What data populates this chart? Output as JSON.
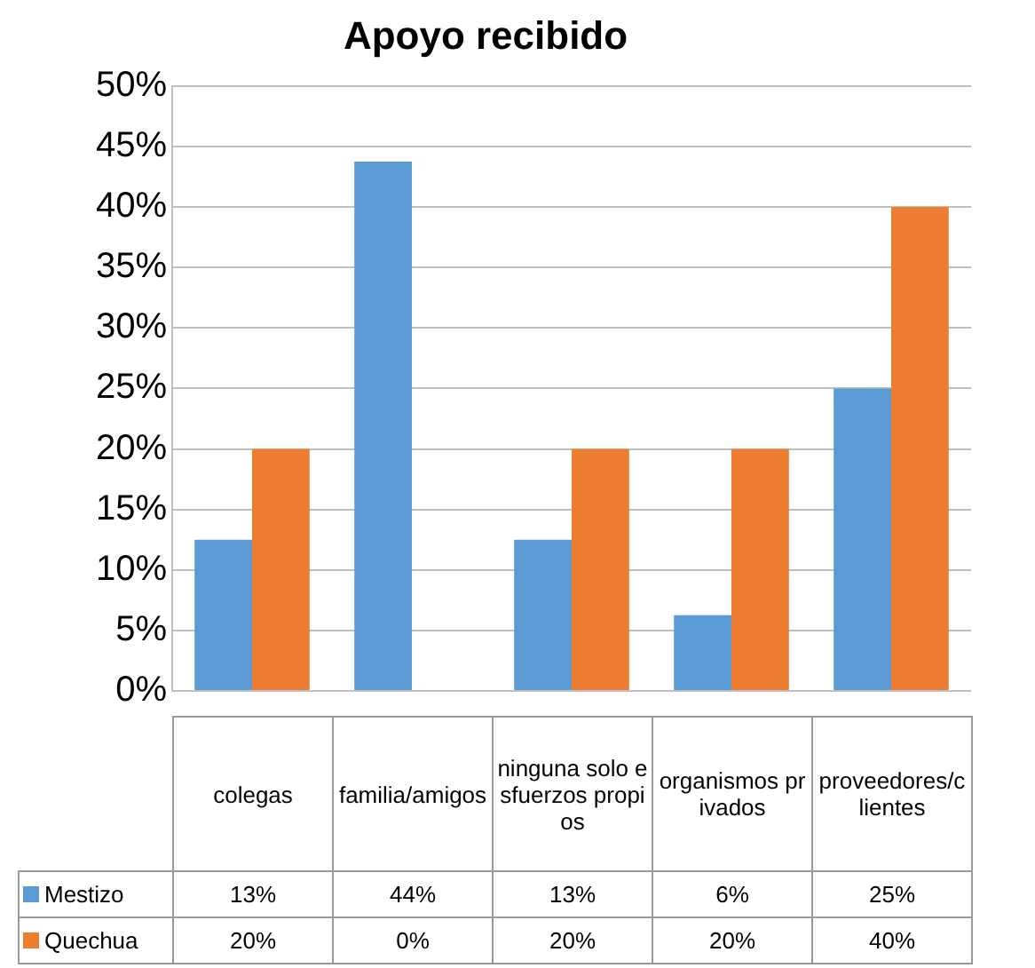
{
  "chart_data": {
    "type": "bar",
    "title": "Apoyo recibido",
    "categories": [
      "colegas",
      "familia/amigos",
      "ninguna solo esfuerzos propios",
      "organismos privados",
      "proveedores/clientes"
    ],
    "series": [
      {
        "name": "Mestizo",
        "color": "#5b9bd5",
        "values": [
          12.5,
          43.75,
          12.5,
          6.25,
          25
        ],
        "value_labels": [
          "13%",
          "44%",
          "13%",
          "6%",
          "25%"
        ]
      },
      {
        "name": "Quechua",
        "color": "#ed7d31",
        "values": [
          20,
          0,
          20,
          20,
          40
        ],
        "value_labels": [
          "20%",
          "0%",
          "20%",
          "20%",
          "40%"
        ]
      }
    ],
    "ylim": [
      0,
      50
    ],
    "yticks": [
      {
        "value": 0,
        "label": "0%"
      },
      {
        "value": 5,
        "label": "5%"
      },
      {
        "value": 10,
        "label": "10%"
      },
      {
        "value": 15,
        "label": "15%"
      },
      {
        "value": 20,
        "label": "20%"
      },
      {
        "value": 25,
        "label": "25%"
      },
      {
        "value": 30,
        "label": "30%"
      },
      {
        "value": 35,
        "label": "35%"
      },
      {
        "value": 40,
        "label": "40%"
      },
      {
        "value": 45,
        "label": "45%"
      },
      {
        "value": 50,
        "label": "50%"
      }
    ],
    "grid": "y",
    "legend": "bottom"
  }
}
